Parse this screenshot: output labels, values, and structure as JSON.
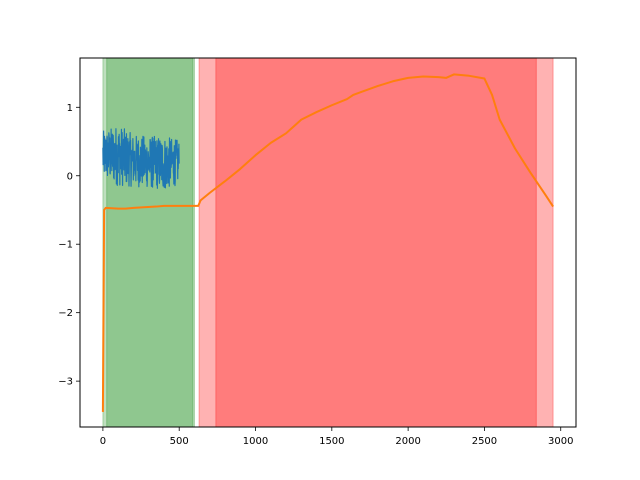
{
  "chart_data": {
    "type": "line",
    "title": "",
    "xlabel": "",
    "ylabel": "",
    "xlim": [
      -150,
      3100
    ],
    "ylim": [
      -3.67,
      1.72
    ],
    "x_ticks": [
      0,
      500,
      1000,
      1500,
      2000,
      2500,
      3000
    ],
    "x_tick_labels": [
      "0",
      "500",
      "1000",
      "1500",
      "2000",
      "2500",
      "3000"
    ],
    "y_ticks": [
      -3,
      -2,
      -1,
      0,
      1
    ],
    "y_tick_labels": [
      "−3",
      "−2",
      "−1",
      "0",
      "1"
    ],
    "grid": false,
    "legend": "none",
    "shaded_regions": [
      {
        "x0": 0,
        "x1": 600,
        "color": "#008000",
        "opacity": 0.25
      },
      {
        "x0": 25,
        "x1": 590,
        "color": "#008000",
        "opacity": 0.25
      },
      {
        "x0": 630,
        "x1": 2950,
        "color": "#ff0000",
        "opacity": 0.3
      },
      {
        "x0": 740,
        "x1": 2840,
        "color": "#ff0000",
        "opacity": 0.3
      }
    ],
    "series": [
      {
        "color": "#1f77b4",
        "style": "noisy-band",
        "x_range": [
          0,
          500
        ],
        "center": [
          [
            0,
            0.3
          ],
          [
            100,
            0.3
          ],
          [
            200,
            0.22
          ],
          [
            300,
            0.2
          ],
          [
            400,
            0.18
          ],
          [
            500,
            0.2
          ]
        ],
        "amplitude": [
          [
            0,
            0.35
          ],
          [
            100,
            0.45
          ],
          [
            200,
            0.38
          ],
          [
            300,
            0.38
          ],
          [
            400,
            0.4
          ],
          [
            500,
            0.32
          ]
        ]
      },
      {
        "color": "#ff7f0e",
        "x": [
          0,
          8,
          18,
          100,
          150,
          200,
          350,
          400,
          500,
          590,
          625,
          640,
          700,
          800,
          900,
          1000,
          1100,
          1200,
          1250,
          1300,
          1400,
          1500,
          1600,
          1640,
          1700,
          1800,
          1900,
          2000,
          2100,
          2200,
          2250,
          2300,
          2400,
          2500,
          2550,
          2600,
          2700,
          2800,
          2900,
          2950
        ],
        "y": [
          -3.45,
          -0.5,
          -0.47,
          -0.48,
          -0.48,
          -0.47,
          -0.45,
          -0.44,
          -0.44,
          -0.44,
          -0.44,
          -0.36,
          -0.25,
          -0.08,
          0.1,
          0.3,
          0.48,
          0.62,
          0.72,
          0.82,
          0.93,
          1.03,
          1.12,
          1.18,
          1.23,
          1.31,
          1.38,
          1.43,
          1.45,
          1.44,
          1.43,
          1.48,
          1.46,
          1.42,
          1.18,
          0.82,
          0.4,
          0.05,
          -0.28,
          -0.45
        ]
      }
    ]
  }
}
